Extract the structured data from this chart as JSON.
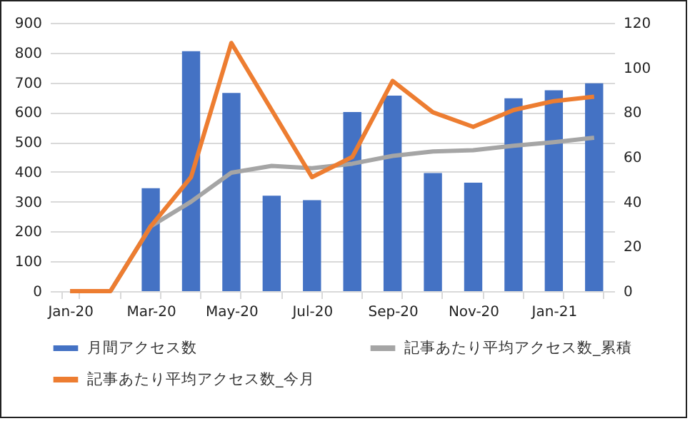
{
  "chart_data": {
    "type": "bar",
    "categories": [
      "Jan-20",
      null,
      "Mar-20",
      null,
      "May-20",
      null,
      "Jul-20",
      null,
      "Sep-20",
      null,
      "Nov-20",
      null,
      "Jan-21",
      null
    ],
    "series": [
      {
        "name": "月間アクセス数",
        "color": "#4472c4",
        "values": [
          0,
          0,
          345,
          805,
          665,
          320,
          305,
          601,
          656,
          396,
          364,
          647,
          674,
          697
        ]
      },
      {
        "name": "記事あたり平均アクセス数_累積",
        "type": "line",
        "axis": "y2",
        "color": "#a5a5a5",
        "values": [
          0,
          0,
          29,
          40,
          53,
          56,
          55,
          57,
          60.5,
          62.5,
          63,
          65,
          66.6,
          68.6
        ]
      },
      {
        "name": "記事あたり平均アクセス数_今月",
        "type": "line",
        "axis": "y2",
        "color": "#ed7d31",
        "values": [
          0,
          0,
          29,
          51,
          111,
          81,
          51,
          60,
          94,
          80,
          73.5,
          81,
          85,
          87
        ]
      }
    ],
    "ylim": [
      0,
      900
    ],
    "yticks": [
      0,
      100,
      200,
      300,
      400,
      500,
      600,
      700,
      800,
      900
    ],
    "y2lim": [
      0,
      120
    ],
    "y2ticks": [
      0,
      20,
      40,
      60,
      80,
      100,
      120
    ],
    "grid": "y",
    "legend": "bottom",
    "marker": "none",
    "line_style": "solid"
  }
}
